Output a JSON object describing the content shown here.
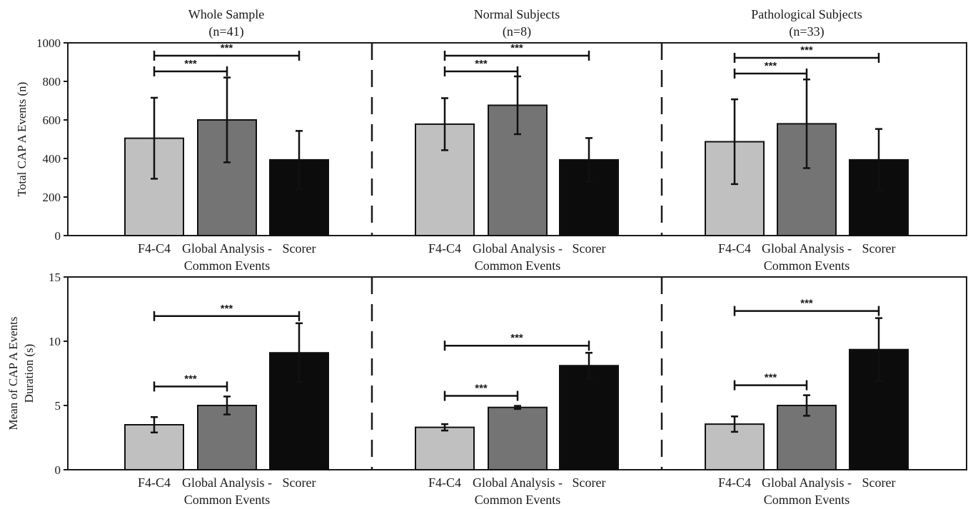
{
  "groups": [
    {
      "title": "Whole Sample",
      "n": "(n=41)"
    },
    {
      "title": "Normal Subjects",
      "n": "(n=8)"
    },
    {
      "title": "Pathological Subjects",
      "n": "(n=33)"
    }
  ],
  "categories": [
    "F4-C4",
    "Global Analysis -\nCommon Events",
    "Scorer"
  ],
  "significance_label": "***",
  "colors": {
    "F4-C4": "#c0c0c0",
    "Global Analysis - Common Events": "#747474",
    "Scorer": "#0c0c0c",
    "axis": "#1a1a1a",
    "divider": "#1a1a1a"
  },
  "chart_data": [
    {
      "type": "bar",
      "ylabel": "Total CAP A Events (n)",
      "ylim": [
        0,
        1000
      ],
      "yticks": [
        0,
        200,
        400,
        600,
        800,
        1000
      ],
      "panels": [
        {
          "group": "Whole Sample",
          "values": [
            505,
            600,
            393
          ],
          "errors": [
            210,
            220,
            150
          ],
          "significance": [
            {
              "from": 0,
              "to": 1,
              "label": "***"
            },
            {
              "from": 0,
              "to": 2,
              "label": "***"
            }
          ]
        },
        {
          "group": "Normal Subjects",
          "values": [
            578,
            676,
            393
          ],
          "errors": [
            135,
            150,
            113
          ],
          "significance": [
            {
              "from": 0,
              "to": 1,
              "label": "***"
            },
            {
              "from": 0,
              "to": 2,
              "label": "***"
            }
          ]
        },
        {
          "group": "Pathological Subjects",
          "values": [
            487,
            580,
            393
          ],
          "errors": [
            220,
            230,
            160
          ],
          "significance": [
            {
              "from": 0,
              "to": 1,
              "label": "***"
            },
            {
              "from": 0,
              "to": 2,
              "label": "***"
            }
          ]
        }
      ]
    },
    {
      "type": "bar",
      "ylabel": "Mean of CAP A Events\nDuration (s)",
      "ylim": [
        0,
        15
      ],
      "yticks": [
        0,
        5,
        10,
        15
      ],
      "panels": [
        {
          "group": "Whole Sample",
          "values": [
            3.5,
            5.0,
            9.1
          ],
          "errors": [
            0.6,
            0.7,
            2.3
          ],
          "significance": [
            {
              "from": 0,
              "to": 1,
              "label": "***"
            },
            {
              "from": 0,
              "to": 2,
              "label": "***"
            }
          ]
        },
        {
          "group": "Normal Subjects",
          "values": [
            3.3,
            4.85,
            8.1
          ],
          "errors": [
            0.25,
            0.12,
            1.0
          ],
          "significance": [
            {
              "from": 0,
              "to": 1,
              "label": "***"
            },
            {
              "from": 0,
              "to": 2,
              "label": "***"
            }
          ]
        },
        {
          "group": "Pathological Subjects",
          "values": [
            3.55,
            5.0,
            9.35
          ],
          "errors": [
            0.6,
            0.8,
            2.45
          ],
          "significance": [
            {
              "from": 0,
              "to": 1,
              "label": "***"
            },
            {
              "from": 0,
              "to": 2,
              "label": "***"
            }
          ]
        }
      ]
    }
  ]
}
